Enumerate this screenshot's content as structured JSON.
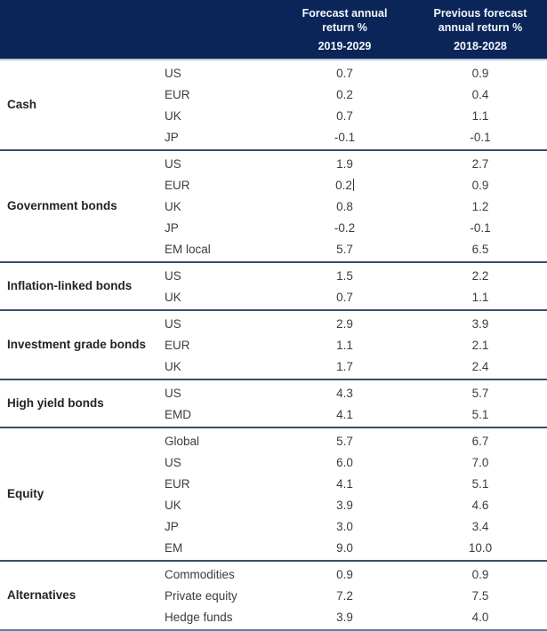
{
  "colors": {
    "header_bg": "#0b2559",
    "header_text": "#f4f7fb",
    "header_underline": "#b5c9da",
    "section_divider": "#37506b",
    "bottom_rule": "#5b82a6",
    "body_text": "#3c3c3c"
  },
  "header": {
    "forecast": {
      "title": "Forecast annual return %",
      "period": "2019-2029"
    },
    "previous": {
      "title": "Previous forecast annual return %",
      "period": "2018-2028"
    }
  },
  "sections": [
    {
      "label": "Cash",
      "rows": [
        {
          "region": "US",
          "forecast": "0.7",
          "previous": "0.9"
        },
        {
          "region": "EUR",
          "forecast": "0.2",
          "previous": "0.4"
        },
        {
          "region": "UK",
          "forecast": "0.7",
          "previous": "1.1"
        },
        {
          "region": "JP",
          "forecast": "-0.1",
          "previous": "-0.1"
        }
      ]
    },
    {
      "label": "Government bonds",
      "rows": [
        {
          "region": "US",
          "forecast": "1.9",
          "previous": "2.7"
        },
        {
          "region": "EUR",
          "forecast": "0.2",
          "previous": "0.9",
          "editing": true
        },
        {
          "region": "UK",
          "forecast": "0.8",
          "previous": "1.2"
        },
        {
          "region": "JP",
          "forecast": "-0.2",
          "previous": "-0.1"
        },
        {
          "region": "EM local",
          "forecast": "5.7",
          "previous": "6.5"
        }
      ]
    },
    {
      "label": "Inflation-linked bonds",
      "rows": [
        {
          "region": "US",
          "forecast": "1.5",
          "previous": "2.2"
        },
        {
          "region": "UK",
          "forecast": "0.7",
          "previous": "1.1"
        }
      ]
    },
    {
      "label": "Investment grade bonds",
      "rows": [
        {
          "region": "US",
          "forecast": "2.9",
          "previous": "3.9"
        },
        {
          "region": "EUR",
          "forecast": "1.1",
          "previous": "2.1"
        },
        {
          "region": "UK",
          "forecast": "1.7",
          "previous": "2.4"
        }
      ]
    },
    {
      "label": "High yield bonds",
      "rows": [
        {
          "region": "US",
          "forecast": "4.3",
          "previous": "5.7"
        },
        {
          "region": "EMD",
          "forecast": "4.1",
          "previous": "5.1"
        }
      ]
    },
    {
      "label": "Equity",
      "rows": [
        {
          "region": "Global",
          "forecast": "5.7",
          "previous": "6.7"
        },
        {
          "region": "US",
          "forecast": "6.0",
          "previous": "7.0"
        },
        {
          "region": "EUR",
          "forecast": "4.1",
          "previous": "5.1"
        },
        {
          "region": "UK",
          "forecast": "3.9",
          "previous": "4.6"
        },
        {
          "region": "JP",
          "forecast": "3.0",
          "previous": "3.4"
        },
        {
          "region": "EM",
          "forecast": "9.0",
          "previous": "10.0"
        }
      ]
    },
    {
      "label": "Alternatives",
      "rows": [
        {
          "region": "Commodities",
          "forecast": "0.9",
          "previous": "0.9"
        },
        {
          "region": "Private equity",
          "forecast": "7.2",
          "previous": "7.5"
        },
        {
          "region": "Hedge funds",
          "forecast": "3.9",
          "previous": "4.0"
        }
      ]
    }
  ]
}
